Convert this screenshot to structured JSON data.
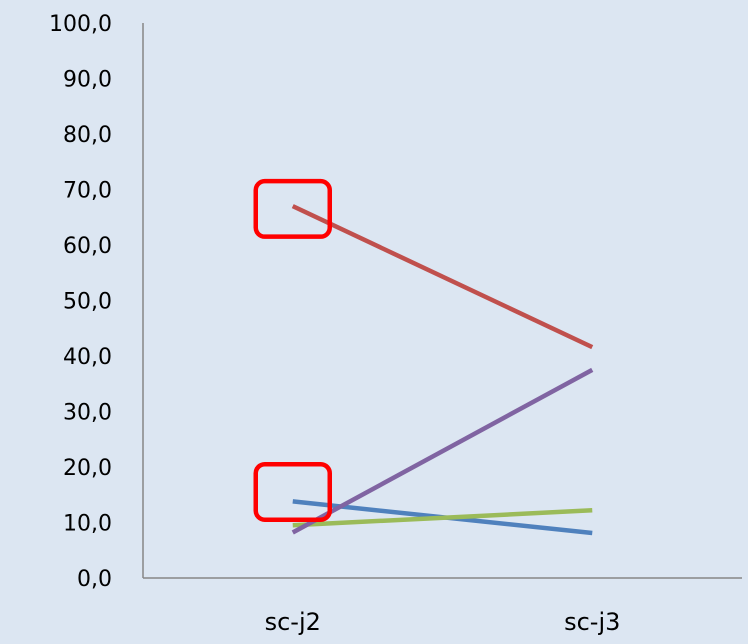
{
  "chart_data": {
    "type": "line",
    "title": "",
    "xlabel": "",
    "ylabel": "",
    "categories": [
      "sc-j2",
      "sc-j3"
    ],
    "ylim": [
      0,
      100
    ],
    "y_ticks": [
      "0,0",
      "10,0",
      "20,0",
      "30,0",
      "40,0",
      "50,0",
      "60,0",
      "70,0",
      "80,0",
      "90,0",
      "100,0"
    ],
    "grid": false,
    "legend": "none",
    "series": [
      {
        "color": "#4f81bd",
        "values": [
          13.8,
          8.1
        ]
      },
      {
        "color": "#c0504d",
        "values": [
          67.0,
          41.6
        ]
      },
      {
        "color": "#9bbb59",
        "values": [
          9.5,
          12.2
        ]
      },
      {
        "color": "#8064a2",
        "values": [
          8.2,
          37.5
        ]
      }
    ],
    "highlight_boxes": [
      {
        "category": "sc-j2",
        "y_range": [
          61.5,
          71.5
        ],
        "color": "#ff0000"
      },
      {
        "category": "sc-j2",
        "y_range": [
          10.5,
          20.5
        ],
        "color": "#ff0000"
      }
    ]
  }
}
